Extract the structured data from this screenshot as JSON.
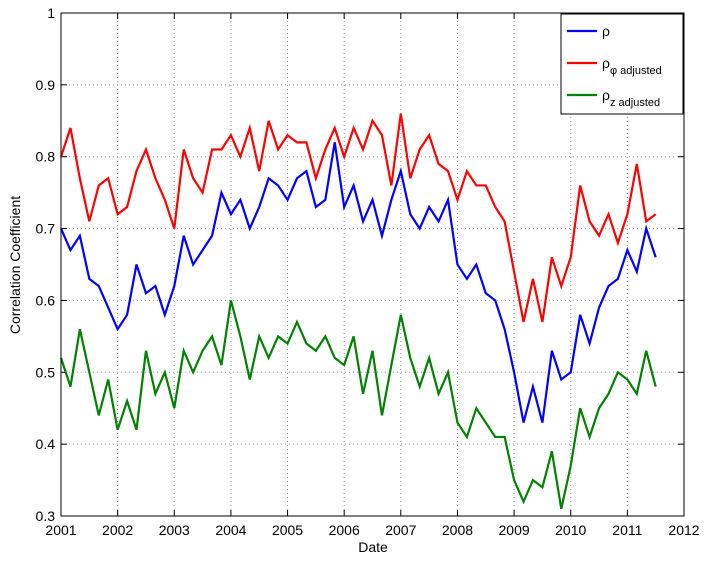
{
  "chart_data": {
    "type": "line",
    "xlabel": "Date",
    "ylabel": "Correlation Coefficient",
    "x": [
      2001,
      2001.167,
      2001.333,
      2001.5,
      2001.667,
      2001.833,
      2002,
      2002.167,
      2002.333,
      2002.5,
      2002.667,
      2002.833,
      2003,
      2003.167,
      2003.333,
      2003.5,
      2003.667,
      2003.833,
      2004,
      2004.167,
      2004.333,
      2004.5,
      2004.667,
      2004.833,
      2005,
      2005.167,
      2005.333,
      2005.5,
      2005.667,
      2005.833,
      2006,
      2006.167,
      2006.333,
      2006.5,
      2006.667,
      2006.833,
      2007,
      2007.167,
      2007.333,
      2007.5,
      2007.667,
      2007.833,
      2008,
      2008.167,
      2008.333,
      2008.5,
      2008.667,
      2008.833,
      2009,
      2009.167,
      2009.333,
      2009.5,
      2009.667,
      2009.833,
      2010,
      2010.167,
      2010.333,
      2010.5,
      2010.667,
      2010.833,
      2011,
      2011.167,
      2011.333,
      2011.5
    ],
    "series": [
      {
        "name": "ρ",
        "color": "#0000ff",
        "values": [
          0.7,
          0.67,
          0.69,
          0.63,
          0.62,
          0.59,
          0.56,
          0.58,
          0.65,
          0.61,
          0.62,
          0.58,
          0.62,
          0.69,
          0.65,
          0.67,
          0.69,
          0.75,
          0.72,
          0.74,
          0.7,
          0.73,
          0.77,
          0.76,
          0.74,
          0.77,
          0.78,
          0.73,
          0.74,
          0.82,
          0.73,
          0.76,
          0.71,
          0.74,
          0.69,
          0.74,
          0.78,
          0.72,
          0.7,
          0.73,
          0.71,
          0.74,
          0.65,
          0.63,
          0.65,
          0.61,
          0.6,
          0.56,
          0.5,
          0.43,
          0.48,
          0.43,
          0.53,
          0.49,
          0.5,
          0.58,
          0.54,
          0.59,
          0.62,
          0.63,
          0.67,
          0.64,
          0.7,
          0.66
        ]
      },
      {
        "name": "ρφ adjusted",
        "color": "#ff0000",
        "values": [
          0.8,
          0.84,
          0.77,
          0.71,
          0.76,
          0.77,
          0.72,
          0.73,
          0.78,
          0.81,
          0.77,
          0.74,
          0.7,
          0.81,
          0.77,
          0.75,
          0.81,
          0.81,
          0.83,
          0.8,
          0.84,
          0.78,
          0.85,
          0.81,
          0.83,
          0.82,
          0.82,
          0.77,
          0.81,
          0.84,
          0.8,
          0.84,
          0.81,
          0.85,
          0.83,
          0.76,
          0.86,
          0.77,
          0.81,
          0.83,
          0.79,
          0.78,
          0.74,
          0.78,
          0.76,
          0.76,
          0.73,
          0.71,
          0.64,
          0.57,
          0.63,
          0.57,
          0.66,
          0.62,
          0.66,
          0.76,
          0.71,
          0.69,
          0.72,
          0.68,
          0.72,
          0.79,
          0.71,
          0.72
        ]
      },
      {
        "name": "ρz adjusted",
        "color": "#008000",
        "values": [
          0.52,
          0.48,
          0.56,
          0.5,
          0.44,
          0.49,
          0.42,
          0.46,
          0.42,
          0.53,
          0.47,
          0.5,
          0.45,
          0.53,
          0.5,
          0.53,
          0.55,
          0.51,
          0.6,
          0.55,
          0.49,
          0.55,
          0.52,
          0.55,
          0.54,
          0.57,
          0.54,
          0.53,
          0.55,
          0.52,
          0.51,
          0.55,
          0.47,
          0.53,
          0.44,
          0.51,
          0.58,
          0.52,
          0.48,
          0.52,
          0.47,
          0.5,
          0.43,
          0.41,
          0.45,
          0.43,
          0.41,
          0.41,
          0.35,
          0.32,
          0.35,
          0.34,
          0.39,
          0.31,
          0.37,
          0.45,
          0.41,
          0.45,
          0.47,
          0.5,
          0.49,
          0.47,
          0.53,
          0.48
        ]
      }
    ],
    "xlim": [
      2001,
      2012
    ],
    "xticks": [
      2001,
      2002,
      2003,
      2004,
      2005,
      2006,
      2007,
      2008,
      2009,
      2010,
      2011,
      2012
    ],
    "ylim": [
      0.3,
      1
    ],
    "yticks": [
      0.3,
      0.4,
      0.5,
      0.6,
      0.7,
      0.8,
      0.9,
      1
    ],
    "grid": true,
    "legend": "northeast"
  }
}
